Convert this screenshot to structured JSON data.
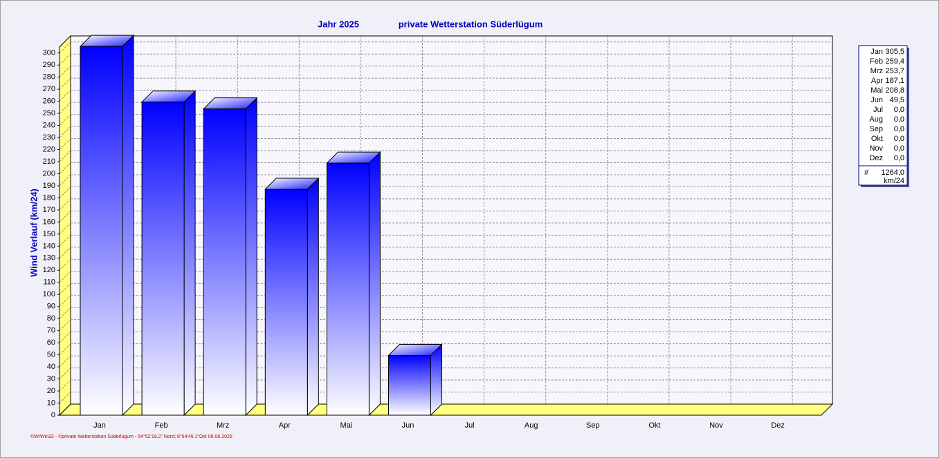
{
  "chart_data": {
    "type": "bar3d",
    "title": "Jahr  2025",
    "subtitle": "private Wetterstation Süderlügum",
    "y_label": "Wind Verlauf  (km/24)",
    "categories": [
      "Jan",
      "Feb",
      "Mrz",
      "Apr",
      "Mai",
      "Jun",
      "Jul",
      "Aug",
      "Sep",
      "Okt",
      "Nov",
      "Dez"
    ],
    "values": [
      305.5,
      259.4,
      253.7,
      187.1,
      208.8,
      49.5,
      0,
      0,
      0,
      0,
      0,
      0
    ],
    "value_labels": [
      "305,5",
      "259,4",
      "253,7",
      "187,1",
      "208,8",
      "49,5",
      "0,0",
      "0,0",
      "0,0",
      "0,0",
      "0,0",
      "0,0"
    ],
    "color": "#0000ff",
    "ylim": [
      0,
      305
    ],
    "yticks": [
      0,
      10,
      20,
      30,
      40,
      50,
      60,
      70,
      80,
      90,
      100,
      110,
      120,
      130,
      140,
      150,
      160,
      170,
      180,
      190,
      200,
      210,
      220,
      230,
      240,
      250,
      260,
      270,
      280,
      290,
      300
    ],
    "grid": true,
    "summary": {
      "symbol": "#",
      "total": "1264,0",
      "unit": "km/24"
    },
    "footer": "©WrWin32 - ©private Wetterstation Süderlügum - 54°52'19.2\" Nord; 8°54'45.1\"Ost  09.06.2025"
  }
}
